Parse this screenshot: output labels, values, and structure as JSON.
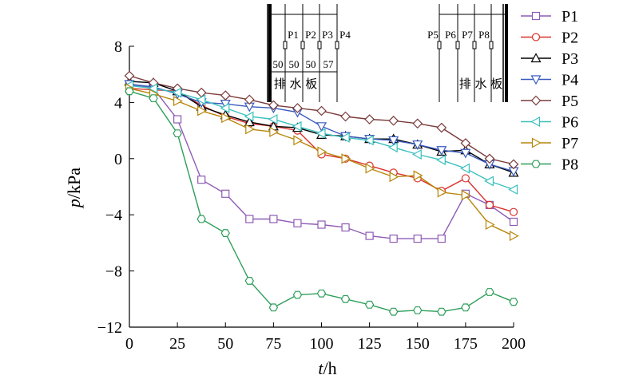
{
  "chart_data": {
    "type": "line",
    "xlabel": "t",
    "xlabel_unit": "h",
    "ylabel": "p",
    "ylabel_unit": "kPa",
    "xlim": [
      0,
      200
    ],
    "ylim": [
      -12,
      8
    ],
    "x_ticks": [
      "0",
      "25",
      "50",
      "75",
      "100",
      "125",
      "150",
      "175",
      "200"
    ],
    "y_ticks": [
      "8",
      "4",
      "0",
      "−4",
      "−8",
      "−12"
    ],
    "x_tick_values": [
      0,
      25,
      50,
      75,
      100,
      125,
      150,
      175,
      200
    ],
    "y_tick_values": [
      8,
      4,
      0,
      -4,
      -8,
      -12
    ],
    "grid": false,
    "legend_position": "right",
    "x": [
      0,
      12.5,
      25,
      37.5,
      50,
      62.5,
      75,
      87.5,
      100,
      112.5,
      125,
      137.5,
      150,
      162.5,
      175,
      187.5,
      200
    ],
    "series": [
      {
        "name": "P1",
        "color": "#8e5bb5",
        "marker": "square",
        "values": [
          5.3,
          5.0,
          2.8,
          -1.5,
          -2.5,
          -4.3,
          -4.3,
          -4.6,
          -4.7,
          -4.9,
          -5.5,
          -5.7,
          -5.7,
          -5.7,
          -2.5,
          -3.3,
          -4.5
        ]
      },
      {
        "name": "P2",
        "color": "#d9312c",
        "marker": "circle",
        "values": [
          5.0,
          4.9,
          4.8,
          3.8,
          3.0,
          2.5,
          2.3,
          2.0,
          0.3,
          0.0,
          -0.5,
          -1.0,
          -1.4,
          -2.3,
          -1.4,
          -3.3,
          -3.8
        ]
      },
      {
        "name": "P3",
        "color": "#000000",
        "marker": "triangle-up",
        "values": [
          5.5,
          5.4,
          4.8,
          3.7,
          3.1,
          2.6,
          2.3,
          2.2,
          1.7,
          1.6,
          1.4,
          1.4,
          1.0,
          0.5,
          0.6,
          -0.4,
          -1.0
        ]
      },
      {
        "name": "P4",
        "color": "#3a5bbf",
        "marker": "triangle-down",
        "values": [
          5.3,
          5.1,
          4.6,
          4.0,
          3.9,
          3.7,
          3.6,
          3.3,
          2.3,
          1.6,
          1.4,
          1.3,
          1.0,
          0.6,
          0.4,
          -0.4,
          -0.9
        ]
      },
      {
        "name": "P5",
        "color": "#7a3b3b",
        "marker": "diamond",
        "values": [
          5.9,
          5.4,
          5.0,
          4.7,
          4.5,
          4.2,
          3.8,
          3.6,
          3.4,
          3.0,
          2.8,
          2.7,
          2.5,
          2.2,
          1.1,
          0.0,
          -0.4
        ]
      },
      {
        "name": "P6",
        "color": "#3bbfbf",
        "marker": "triangle-left",
        "values": [
          5.2,
          5.0,
          4.7,
          4.2,
          3.6,
          3.0,
          2.8,
          2.3,
          1.8,
          1.5,
          1.3,
          0.8,
          0.3,
          -0.1,
          -0.7,
          -1.6,
          -2.2
        ]
      },
      {
        "name": "P7",
        "color": "#b8860b",
        "marker": "triangle-right",
        "values": [
          5.0,
          4.6,
          4.1,
          3.4,
          2.9,
          2.1,
          1.9,
          1.3,
          0.5,
          0.0,
          -0.7,
          -1.3,
          -1.2,
          -2.4,
          -2.6,
          -4.7,
          -5.5
        ]
      },
      {
        "name": "P8",
        "color": "#2e9e5a",
        "marker": "hexagon",
        "values": [
          4.8,
          4.3,
          1.8,
          -4.3,
          -5.3,
          -8.7,
          -10.6,
          -9.7,
          -9.6,
          -10.0,
          -10.4,
          -10.9,
          -10.8,
          -10.9,
          -10.6,
          -9.5,
          -10.2
        ]
      }
    ]
  },
  "diagram": {
    "left_labels": [
      "P1",
      "P2",
      "P3",
      "P4"
    ],
    "left_spacings": [
      "50",
      "50",
      "50",
      "57"
    ],
    "left_board_label": "排 水 板",
    "right_labels": [
      "P5",
      "P6",
      "P7",
      "P8"
    ],
    "right_board_label": "排 水 板"
  }
}
